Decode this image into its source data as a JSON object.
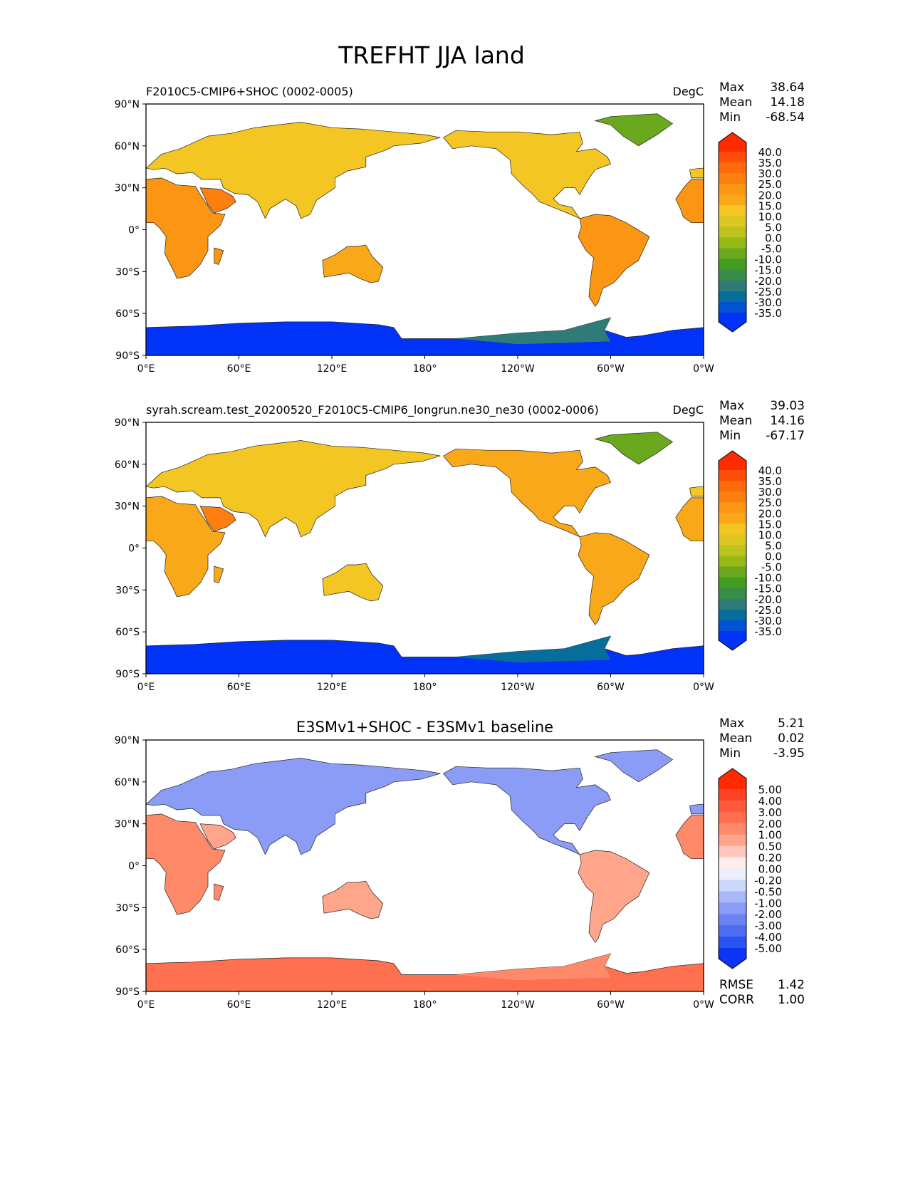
{
  "figure_title": "TREFHT JJA land",
  "lat_ticks": [
    "90°N",
    "60°N",
    "30°N",
    "0°",
    "30°S",
    "60°S",
    "90°S"
  ],
  "lon_ticks": [
    "0°E",
    "60°E",
    "120°E",
    "180°",
    "120°W",
    "60°W",
    "0°W"
  ],
  "panels": [
    {
      "title": "F2010C5-CMIP6+SHOC (0002-0005)",
      "units": "DegC",
      "stats": [
        {
          "label": "Max",
          "value": "38.64"
        },
        {
          "label": "Mean",
          "value": "14.18"
        },
        {
          "label": "Min",
          "value": "-68.54"
        }
      ],
      "colorbar": "temp",
      "fills": {
        "africa": "#fa9614",
        "eurasia": "#f3c623",
        "arabia": "#fc7f0f",
        "australia": "#f8a818",
        "namerica": "#f3c623",
        "samerica": "#fa9614",
        "greenland": "#6aa81e",
        "antarctica": "#0033f7",
        "antarctica_w": "#2f7b78"
      }
    },
    {
      "title": "syrah.scream.test_20200520_F2010C5-CMIP6_longrun.ne30_ne30 (0002-0006)",
      "units": "DegC",
      "stats": [
        {
          "label": "Max",
          "value": "39.03"
        },
        {
          "label": "Mean",
          "value": "14.16"
        },
        {
          "label": "Min",
          "value": "-67.17"
        }
      ],
      "colorbar": "temp",
      "fills": {
        "africa": "#f8a818",
        "eurasia": "#f3c623",
        "arabia": "#fc7f0f",
        "australia": "#f3c623",
        "namerica": "#f8a818",
        "samerica": "#f8a818",
        "greenland": "#6aa81e",
        "antarctica": "#0033f7",
        "antarctica_w": "#076e9b"
      }
    },
    {
      "title": "E3SMv1+SHOC - E3SMv1 baseline",
      "units": "",
      "stats": [
        {
          "label": "Max",
          "value": "5.21"
        },
        {
          "label": "Mean",
          "value": "0.02"
        },
        {
          "label": "Min",
          "value": "-3.95"
        }
      ],
      "colorbar": "diff",
      "extra_stats": [
        {
          "label": "RMSE",
          "value": "1.42"
        },
        {
          "label": "CORR",
          "value": "1.00"
        }
      ],
      "fills": {
        "africa": "#ff8a6a",
        "eurasia": "#8a9cf5",
        "arabia": "#ffa58c",
        "australia": "#ffa58c",
        "namerica": "#8a9cf5",
        "samerica": "#ffa58c",
        "greenland": "#8a9cf5",
        "antarctica": "#ff7050",
        "antarctica_w": "#ff8a6a"
      }
    }
  ],
  "colorbars": {
    "temp": {
      "labels": [
        "40.0",
        "35.0",
        "30.0",
        "25.0",
        "20.0",
        "15.0",
        "10.0",
        "5.0",
        "0.0",
        "-5.0",
        "-10.0",
        "-15.0",
        "-20.0",
        "-25.0",
        "-30.0",
        "-35.0"
      ],
      "colors": [
        "#ff2a00",
        "#ff4d0a",
        "#ff6a0a",
        "#fc7f0f",
        "#fa9614",
        "#f8a818",
        "#f3c623",
        "#dcc723",
        "#bcc31c",
        "#96b915",
        "#6aa81e",
        "#429d20",
        "#3a8d48",
        "#2f7b78",
        "#076e9b",
        "#0054d3",
        "#0033f7"
      ]
    },
    "diff": {
      "labels": [
        "5.00",
        "4.00",
        "3.00",
        "2.00",
        "1.00",
        "0.50",
        "0.20",
        "0.00",
        "-0.20",
        "-0.50",
        "-1.00",
        "-2.00",
        "-3.00",
        "-4.00",
        "-5.00"
      ],
      "colors": [
        "#ff2a00",
        "#ff4124",
        "#ff5a3c",
        "#ff7050",
        "#ff8a6a",
        "#ffa58c",
        "#ffc8bd",
        "#ffeceb",
        "#ecf0fe",
        "#ccd7fb",
        "#a9b8f8",
        "#8a9cf5",
        "#6c84f3",
        "#4e6cf2",
        "#2b53f2",
        "#0b34f5"
      ]
    }
  }
}
